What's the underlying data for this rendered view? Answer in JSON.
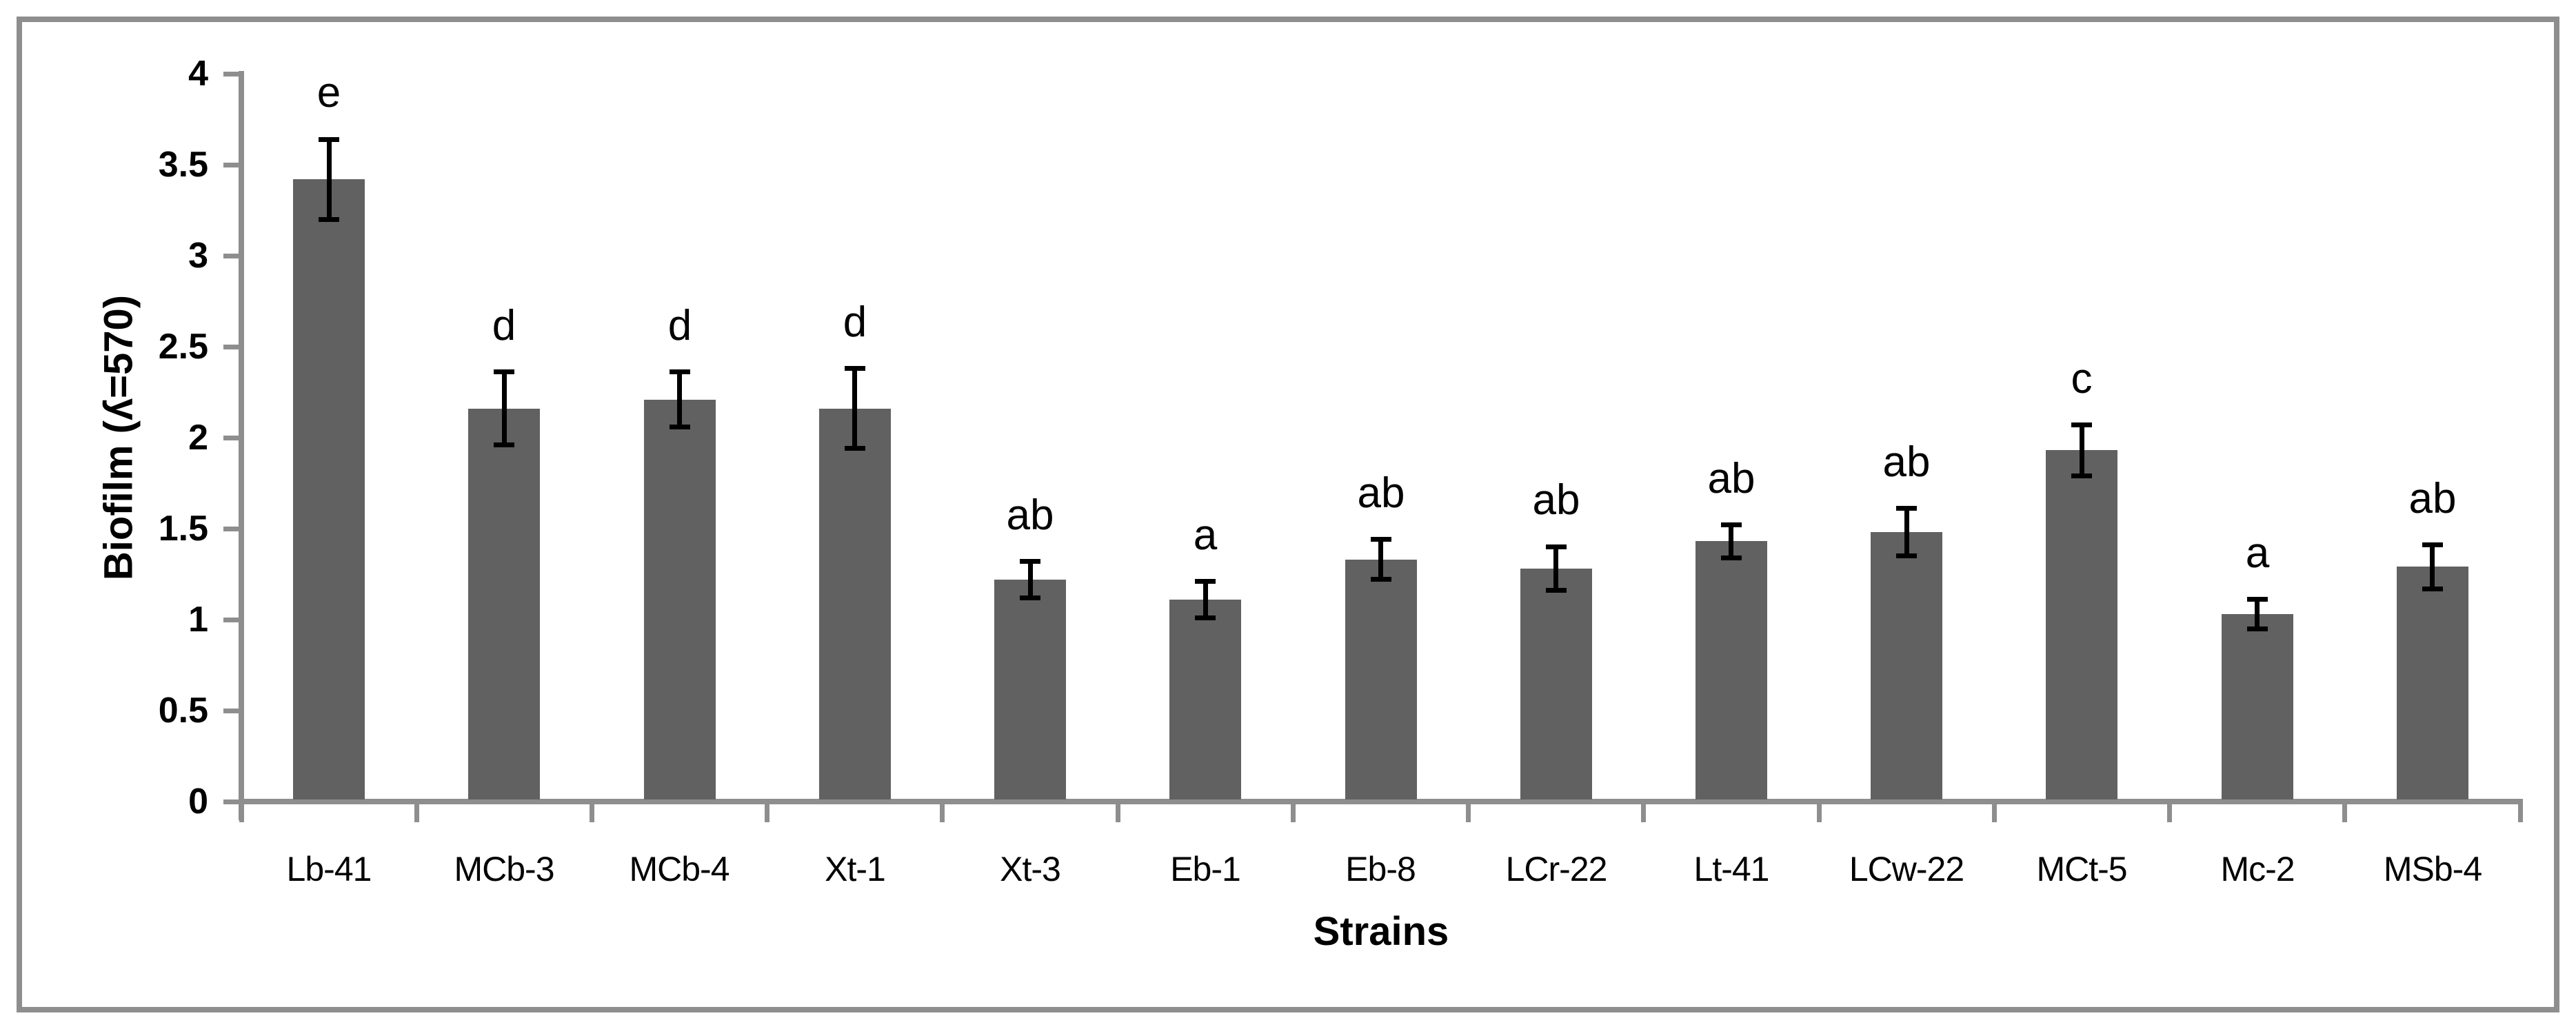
{
  "figure": {
    "background": "#ffffff",
    "border_color": "#8e8e8e",
    "axis_color": "#8e8e8e",
    "text_color": "#000000"
  },
  "chart_data": {
    "type": "bar",
    "title": "",
    "xlabel": "Strains",
    "ylabel": "Biofilm (ʎ=570)",
    "ylim": [
      0,
      4
    ],
    "ytick_interval": 0.5,
    "ytick_labels": [
      "0",
      "0.5",
      "1",
      "1.5",
      "2",
      "2.5",
      "3",
      "3.5",
      "4"
    ],
    "grid": false,
    "legend": false,
    "bar_color": "#616161",
    "error_bar_color": "#000000",
    "categories": [
      "Lb-41",
      "MCb-3",
      "MCb-4",
      "Xt-1",
      "Xt-3",
      "Eb-1",
      "Eb-8",
      "LCr-22",
      "Lt-41",
      "LCw-22",
      "MCt-5",
      "Mc-2",
      "MSb-4"
    ],
    "values": [
      3.42,
      2.16,
      2.21,
      2.16,
      1.22,
      1.11,
      1.33,
      1.28,
      1.43,
      1.48,
      1.93,
      1.03,
      1.29
    ],
    "errors": [
      0.22,
      0.2,
      0.15,
      0.22,
      0.1,
      0.1,
      0.11,
      0.12,
      0.09,
      0.13,
      0.14,
      0.08,
      0.12
    ],
    "sig_letters": [
      "e",
      "d",
      "d",
      "d",
      "ab",
      "a",
      "ab",
      "ab",
      "ab",
      "ab",
      "c",
      "a",
      "ab"
    ]
  }
}
